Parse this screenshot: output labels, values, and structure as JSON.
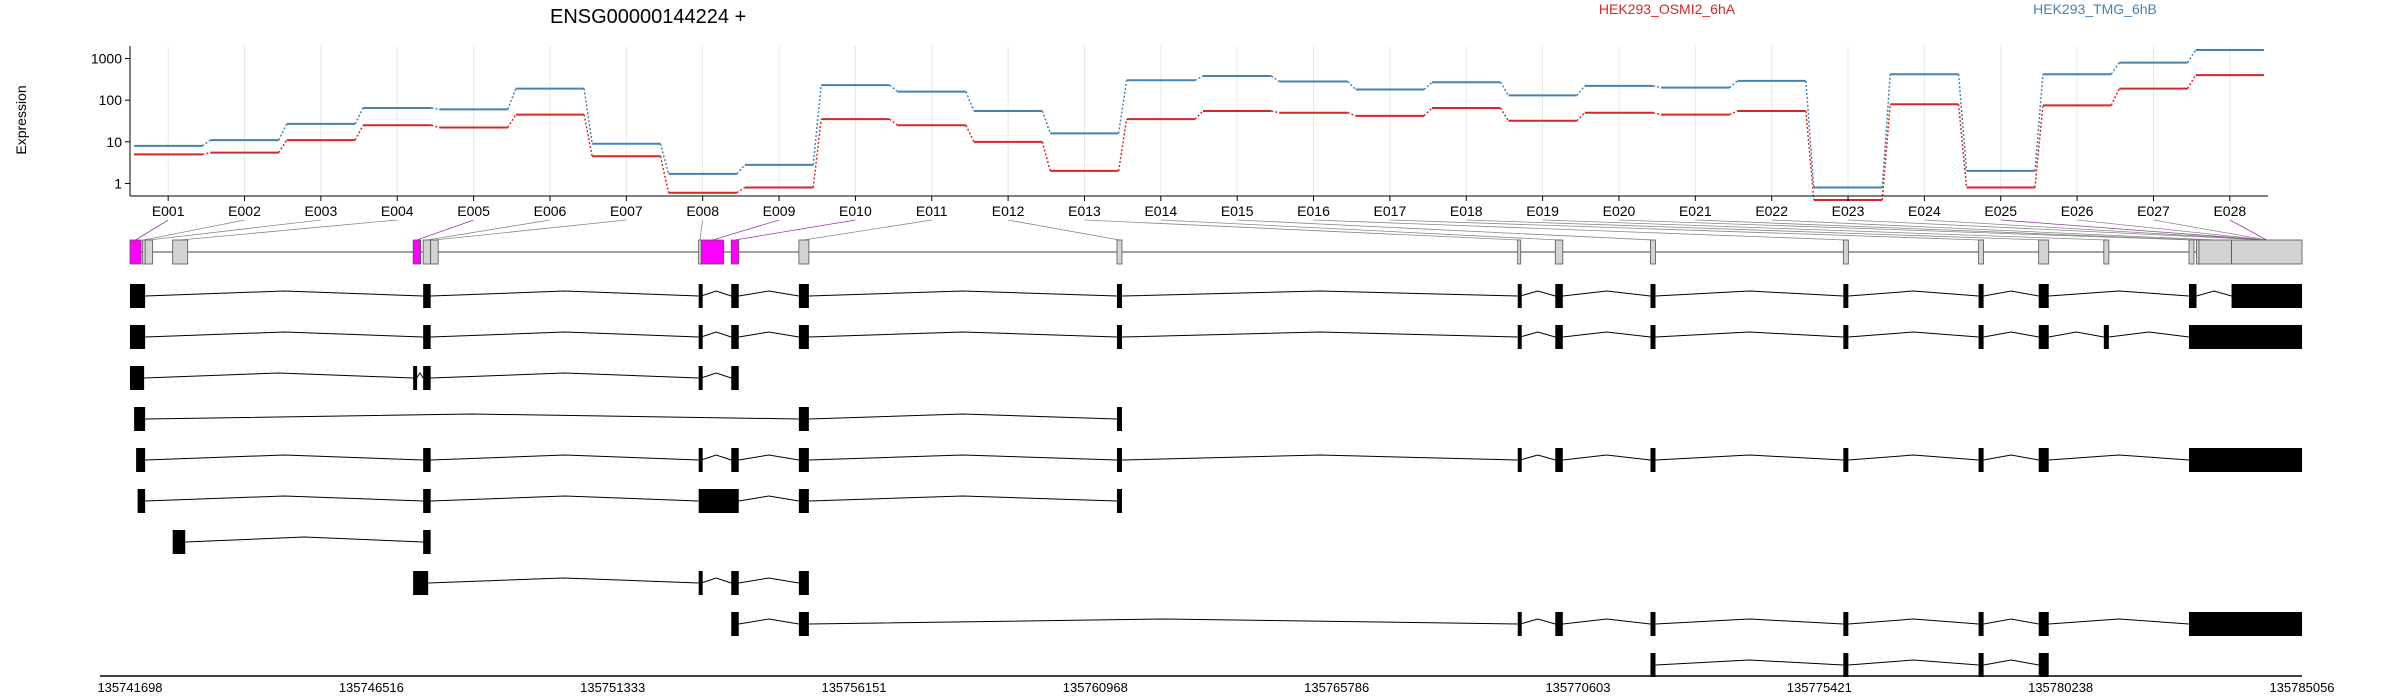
{
  "chart_data": {
    "type": "line",
    "title": "ENSG00000144224 +",
    "ylabel": "Expression",
    "yscale": "log",
    "ylim": [
      0.5,
      2000
    ],
    "yticks": [
      1,
      10,
      100,
      1000
    ],
    "grid": true,
    "legend_placement": "top",
    "colors": {
      "HEK293_OSMI2_6hA": "#d62728",
      "HEK293_TMG_6hB": "#4682b4",
      "highlight": "#ff00ff",
      "plain_exon": "#d3d3d3",
      "connector": "#9b3aa8"
    },
    "categories": [
      "E001",
      "E002",
      "E003",
      "E004",
      "E005",
      "E006",
      "E007",
      "E008",
      "E009",
      "E010",
      "E011",
      "E012",
      "E013",
      "E014",
      "E015",
      "E016",
      "E017",
      "E018",
      "E019",
      "E020",
      "E021",
      "E022",
      "E023",
      "E024",
      "E025",
      "E026",
      "E027",
      "E028"
    ],
    "series": [
      {
        "name": "HEK293_OSMI2_6hA",
        "values": [
          5,
          5.5,
          11,
          25,
          22,
          45,
          4.5,
          0.6,
          0.8,
          35,
          25,
          10,
          2,
          35,
          55,
          50,
          42,
          65,
          32,
          50,
          45,
          55,
          0.4,
          80,
          0.8,
          75,
          190,
          400
        ]
      },
      {
        "name": "HEK293_TMG_6hB",
        "values": [
          8,
          11,
          27,
          65,
          60,
          190,
          9,
          1.7,
          2.8,
          230,
          160,
          55,
          16,
          300,
          380,
          280,
          180,
          270,
          130,
          220,
          200,
          290,
          0.8,
          420,
          2,
          420,
          800,
          1600
        ]
      }
    ],
    "highlighted_exons": [
      "E001",
      "E005",
      "E009",
      "E010",
      "E025",
      "E028"
    ],
    "genomic_axis": {
      "range": [
        135741698,
        135785056
      ],
      "tick_labels": [
        "135741698",
        "135746516",
        "135751333",
        "135756151",
        "135760968",
        "135765786",
        "135770603",
        "135775421",
        "135780238",
        "135785056"
      ]
    },
    "gene_model": [
      [
        135741698,
        135741920
      ],
      [
        135741950,
        135742000
      ],
      [
        135742000,
        135742150
      ],
      [
        135742550,
        135742850
      ],
      [
        135747350,
        135747500
      ],
      [
        135747550,
        135747700
      ],
      [
        135747700,
        135747850
      ],
      [
        135753050,
        135753100
      ],
      [
        135753100,
        135753550
      ],
      [
        135753700,
        135753850
      ],
      [
        135755050,
        135755250
      ],
      [
        135761400,
        135761500
      ],
      [
        135769400,
        135769450
      ],
      [
        135770150,
        135770300
      ],
      [
        135772050,
        135772150
      ],
      [
        135775900,
        135776000
      ],
      [
        135778600,
        135778700
      ],
      [
        135779800,
        135780000
      ],
      [
        135781100,
        135781200
      ],
      [
        135782800,
        135782900
      ],
      [
        135782950,
        135783000
      ],
      [
        135783000,
        135783650
      ],
      [
        135783650,
        135785056
      ]
    ],
    "transcripts": [
      [
        [
          135741698,
          135742000
        ],
        [
          135747550,
          135747700
        ],
        [
          135753050,
          135753100
        ],
        [
          135753700,
          135753850
        ],
        [
          135755050,
          135755250
        ],
        [
          135761400,
          135761500
        ],
        [
          135769400,
          135769450
        ],
        [
          135770150,
          135770300
        ],
        [
          135772050,
          135772150
        ],
        [
          135775900,
          135776000
        ],
        [
          135778600,
          135778700
        ],
        [
          135779800,
          135780000
        ],
        [
          135782800,
          135782950
        ],
        [
          135783650,
          135785056
        ]
      ],
      [
        [
          135741698,
          135742000
        ],
        [
          135747550,
          135747700
        ],
        [
          135753050,
          135753100
        ],
        [
          135753700,
          135753850
        ],
        [
          135755050,
          135755250
        ],
        [
          135761400,
          135761500
        ],
        [
          135769400,
          135769450
        ],
        [
          135770150,
          135770300
        ],
        [
          135772050,
          135772150
        ],
        [
          135775900,
          135776000
        ],
        [
          135778600,
          135778700
        ],
        [
          135779800,
          135780000
        ],
        [
          135781100,
          135781200
        ],
        [
          135782800,
          135785056
        ]
      ],
      [
        [
          135741698,
          135741980
        ],
        [
          135747350,
          135747420
        ],
        [
          135747550,
          135747700
        ],
        [
          135753050,
          135753100
        ],
        [
          135753700,
          135753850
        ]
      ],
      [
        [
          135741780,
          135742000
        ],
        [
          135755050,
          135755250
        ],
        [
          135761400,
          135761500
        ]
      ],
      [
        [
          135741820,
          135742000
        ],
        [
          135747550,
          135747700
        ],
        [
          135753050,
          135753100
        ],
        [
          135753700,
          135753850
        ],
        [
          135755050,
          135755250
        ],
        [
          135761400,
          135761500
        ],
        [
          135769400,
          135769450
        ],
        [
          135770150,
          135770300
        ],
        [
          135772050,
          135772150
        ],
        [
          135775900,
          135776000
        ],
        [
          135778600,
          135778700
        ],
        [
          135779800,
          135780000
        ],
        [
          135782800,
          135785056
        ]
      ],
      [
        [
          135741850,
          135742000
        ],
        [
          135747550,
          135747700
        ],
        [
          135753050,
          135753850
        ],
        [
          135755050,
          135755250
        ],
        [
          135761400,
          135761500
        ]
      ],
      [
        [
          135742550,
          135742800
        ],
        [
          135747550,
          135747700
        ]
      ],
      [
        [
          135747350,
          135747650
        ],
        [
          135753050,
          135753100
        ],
        [
          135753700,
          135753850
        ],
        [
          135755050,
          135755250
        ]
      ],
      [
        [
          135753700,
          135753850
        ],
        [
          135755050,
          135755250
        ],
        [
          135769400,
          135769450
        ],
        [
          135770150,
          135770300
        ],
        [
          135772050,
          135772150
        ],
        [
          135775900,
          135776000
        ],
        [
          135778600,
          135778700
        ],
        [
          135779800,
          135780000
        ],
        [
          135782800,
          135785056
        ]
      ],
      [
        [
          135772050,
          135772150
        ],
        [
          135775900,
          135776000
        ],
        [
          135778600,
          135778700
        ],
        [
          135779800,
          135780000
        ]
      ]
    ]
  }
}
